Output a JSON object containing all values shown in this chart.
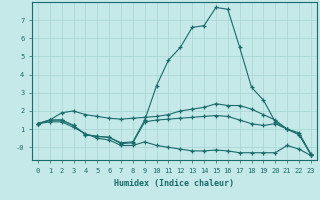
{
  "xlabel": "Humidex (Indice chaleur)",
  "bg_color": "#c5e8e8",
  "grid_color": "#a8d4d4",
  "line_color": "#1a6b6b",
  "xlim": [
    -0.5,
    23.5
  ],
  "ylim": [
    -0.7,
    8.0
  ],
  "yticks": [
    0,
    1,
    2,
    3,
    4,
    5,
    6,
    7
  ],
  "ytick_labels": [
    "-0",
    "1",
    "2",
    "3",
    "4",
    "5",
    "6",
    "7"
  ],
  "xticks": [
    0,
    1,
    2,
    3,
    4,
    5,
    6,
    7,
    8,
    9,
    10,
    11,
    12,
    13,
    14,
    15,
    16,
    17,
    18,
    19,
    20,
    21,
    22,
    23
  ],
  "line1_x": [
    0,
    1,
    2,
    3,
    4,
    5,
    6,
    7,
    8,
    9,
    10,
    11,
    12,
    13,
    14,
    15,
    16,
    17,
    18,
    19,
    20,
    21,
    22,
    23
  ],
  "line1_y": [
    1.3,
    1.5,
    1.5,
    1.2,
    0.7,
    0.6,
    0.55,
    0.25,
    0.3,
    1.5,
    3.4,
    4.8,
    5.5,
    6.6,
    6.7,
    7.7,
    7.6,
    5.5,
    3.3,
    2.6,
    1.4,
    1.0,
    0.7,
    -0.4
  ],
  "line2_x": [
    0,
    1,
    2,
    3,
    4,
    5,
    6,
    7,
    8,
    9,
    10,
    11,
    12,
    13,
    14,
    15,
    16,
    17,
    18,
    19,
    20,
    21,
    22,
    23
  ],
  "line2_y": [
    1.3,
    1.5,
    1.9,
    2.0,
    1.8,
    1.7,
    1.6,
    1.55,
    1.6,
    1.65,
    1.7,
    1.8,
    2.0,
    2.1,
    2.2,
    2.4,
    2.3,
    2.3,
    2.1,
    1.8,
    1.5,
    1.0,
    0.8,
    -0.4
  ],
  "line3_x": [
    0,
    1,
    2,
    3,
    4,
    5,
    6,
    7,
    8,
    9,
    10,
    11,
    12,
    13,
    14,
    15,
    16,
    17,
    18,
    19,
    20,
    21,
    22,
    23
  ],
  "line3_y": [
    1.3,
    1.5,
    1.5,
    1.2,
    0.7,
    0.6,
    0.55,
    0.2,
    0.25,
    1.4,
    1.5,
    1.55,
    1.6,
    1.65,
    1.7,
    1.75,
    1.7,
    1.5,
    1.3,
    1.2,
    1.3,
    1.0,
    0.7,
    -0.35
  ],
  "line4_x": [
    0,
    1,
    2,
    3,
    4,
    5,
    6,
    7,
    8,
    9,
    10,
    11,
    12,
    13,
    14,
    15,
    16,
    17,
    18,
    19,
    20,
    21,
    22,
    23
  ],
  "line4_y": [
    1.3,
    1.4,
    1.4,
    1.1,
    0.75,
    0.5,
    0.4,
    0.1,
    0.1,
    0.3,
    0.1,
    -0.0,
    -0.1,
    -0.2,
    -0.2,
    -0.15,
    -0.2,
    -0.3,
    -0.3,
    -0.3,
    -0.3,
    0.1,
    -0.1,
    -0.45
  ]
}
